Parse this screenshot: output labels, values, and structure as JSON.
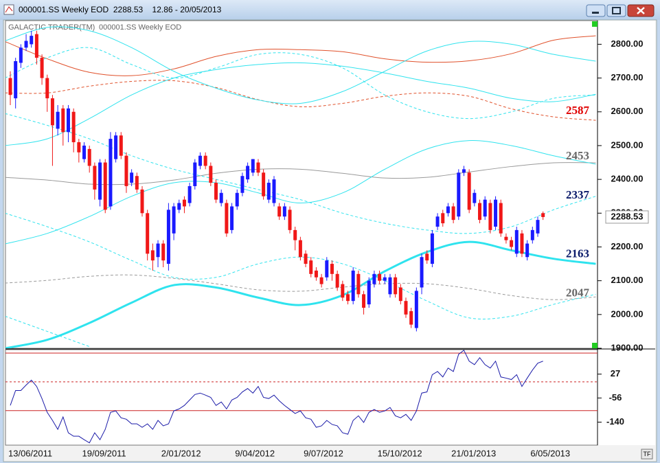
{
  "window": {
    "title": "000001.SS Weekly EOD  2288.53    12.86 - 20/05/2013"
  },
  "chart_data": {
    "type": "candlestick",
    "source": "GALACTIC TRADER(TM)",
    "title": "000001.SS Weekly EOD",
    "categories": [
      "13/06/2011",
      null,
      null,
      null,
      null,
      null,
      null,
      null,
      null,
      null,
      null,
      null,
      null,
      null,
      "19/09/2011",
      null,
      null,
      null,
      null,
      null,
      null,
      null,
      null,
      null,
      null,
      null,
      null,
      null,
      null,
      "2/01/2012",
      null,
      null,
      null,
      null,
      null,
      null,
      null,
      null,
      null,
      null,
      null,
      null,
      null,
      "9/04/2012",
      null,
      null,
      null,
      null,
      null,
      null,
      null,
      null,
      null,
      null,
      null,
      null,
      "9/07/2012",
      null,
      null,
      null,
      null,
      null,
      null,
      null,
      null,
      null,
      null,
      null,
      null,
      null,
      "15/10/2012",
      null,
      null,
      null,
      null,
      null,
      null,
      null,
      null,
      null,
      null,
      null,
      null,
      null,
      "21/01/2013",
      null,
      null,
      null,
      null,
      null,
      null,
      null,
      null,
      null,
      null,
      null,
      null,
      null,
      null,
      "6/05/2013",
      null,
      null,
      null,
      null,
      null,
      null,
      null,
      null,
      null,
      null,
      null,
      null
    ],
    "open": [
      2700,
      2640,
      2745,
      2790,
      2800,
      2830,
      2760,
      2700,
      2640,
      2550,
      2610,
      2540,
      2600,
      2510,
      2460,
      2490,
      2440,
      2340,
      2450,
      2320,
      2460,
      2530,
      2470,
      2390,
      2410,
      2370,
      2300,
      2190,
      2170,
      2210,
      2150,
      2240,
      2310,
      2340,
      2330,
      2380,
      2440,
      2470,
      2440,
      2390,
      2330,
      2330,
      2250,
      2320,
      2360,
      2400,
      2420,
      2450,
      2420,
      2340,
      2330,
      2320,
      2290,
      2310,
      2250,
      2220,
      2180,
      2160,
      2130,
      2110,
      2110,
      2150,
      2120,
      2090,
      2060,
      2040,
      2120,
      2060,
      2030,
      2090,
      2120,
      2100,
      2060,
      2110,
      2080,
      2040,
      2010,
      1960,
      2080,
      2180,
      2150,
      2260,
      2300,
      2300,
      2320,
      2290,
      2420,
      2420,
      2330,
      2330,
      2290,
      2330,
      2260,
      2330,
      2230,
      2220,
      2180,
      2240,
      2170,
      2220,
      2240,
      2300,
      null,
      null,
      null,
      null,
      null,
      null,
      null,
      null,
      null,
      null
    ],
    "high": [
      2720,
      2760,
      2800,
      2830,
      2840,
      2840,
      2770,
      2710,
      2650,
      2620,
      2620,
      2620,
      2610,
      2520,
      2510,
      2500,
      2450,
      2460,
      2460,
      2540,
      2540,
      2540,
      2480,
      2430,
      2420,
      2380,
      2310,
      2210,
      2220,
      2220,
      2330,
      2330,
      2340,
      2350,
      2390,
      2460,
      2480,
      2480,
      2450,
      2400,
      2370,
      2340,
      2330,
      2370,
      2420,
      2450,
      2460,
      2460,
      2430,
      2400,
      2410,
      2330,
      2330,
      2320,
      2260,
      2230,
      2190,
      2170,
      2140,
      2120,
      2170,
      2160,
      2130,
      2100,
      2070,
      2140,
      2130,
      2070,
      2110,
      2130,
      2130,
      2120,
      2120,
      2120,
      2090,
      2050,
      2020,
      2080,
      2180,
      2190,
      2250,
      2300,
      2310,
      2330,
      2330,
      2430,
      2440,
      2430,
      2370,
      2340,
      2350,
      2340,
      2350,
      2340,
      2240,
      2230,
      2260,
      2250,
      2220,
      2260,
      2290,
      2305,
      null,
      null,
      null,
      null,
      null,
      null,
      null,
      null,
      null,
      null
    ],
    "low": [
      2620,
      2610,
      2730,
      2780,
      2790,
      2740,
      2680,
      2600,
      2440,
      2530,
      2500,
      2510,
      2480,
      2450,
      2450,
      2420,
      2340,
      2320,
      2300,
      2310,
      2450,
      2460,
      2360,
      2380,
      2360,
      2290,
      2160,
      2130,
      2140,
      2140,
      2130,
      2220,
      2300,
      2300,
      2320,
      2370,
      2430,
      2430,
      2380,
      2330,
      2320,
      2230,
      2240,
      2310,
      2350,
      2390,
      2410,
      2410,
      2340,
      2330,
      2320,
      2280,
      2280,
      2240,
      2190,
      2160,
      2140,
      2110,
      2100,
      2080,
      2100,
      2100,
      2070,
      2040,
      2030,
      2030,
      2050,
      2000,
      2020,
      2080,
      2090,
      2090,
      2050,
      2050,
      2030,
      1990,
      1960,
      1950,
      2060,
      2150,
      2140,
      2250,
      2260,
      2290,
      2270,
      2280,
      2410,
      2300,
      2320,
      2270,
      2280,
      2240,
      2250,
      2230,
      2210,
      2190,
      2170,
      2170,
      2160,
      2210,
      2230,
      2280,
      null,
      null,
      null,
      null,
      null,
      null,
      null,
      null,
      null,
      null
    ],
    "close": [
      2650,
      2750,
      2790,
      2810,
      2825,
      2760,
      2700,
      2640,
      2560,
      2600,
      2540,
      2610,
      2510,
      2480,
      2500,
      2440,
      2370,
      2450,
      2310,
      2520,
      2530,
      2470,
      2380,
      2420,
      2370,
      2300,
      2180,
      2160,
      2210,
      2160,
      2310,
      2320,
      2330,
      2320,
      2380,
      2450,
      2470,
      2440,
      2390,
      2340,
      2360,
      2240,
      2320,
      2360,
      2410,
      2440,
      2460,
      2420,
      2350,
      2390,
      2400,
      2290,
      2320,
      2250,
      2220,
      2170,
      2150,
      2120,
      2110,
      2090,
      2160,
      2120,
      2080,
      2050,
      2040,
      2130,
      2060,
      2020,
      2100,
      2120,
      2100,
      2110,
      2110,
      2060,
      2040,
      2000,
      1970,
      2070,
      2170,
      2160,
      2240,
      2290,
      2270,
      2320,
      2280,
      2420,
      2430,
      2310,
      2360,
      2280,
      2340,
      2250,
      2340,
      2240,
      2220,
      2200,
      2250,
      2180,
      2210,
      2250,
      2280,
      2288.53,
      null,
      null,
      null,
      null,
      null,
      null,
      null,
      null,
      null,
      null
    ],
    "up_color": "#1a1aff",
    "down_color": "#f01818",
    "ylim": [
      1900,
      2870
    ],
    "yticks": [
      {
        "value": 1900,
        "label": "1900.00"
      },
      {
        "value": 2000,
        "label": "2000.00"
      },
      {
        "value": 2100,
        "label": "2100.00"
      },
      {
        "value": 2200,
        "label": "2200.00"
      },
      {
        "value": 2300,
        "label": "2300.00"
      },
      {
        "value": 2400,
        "label": "2400.00"
      },
      {
        "value": 2500,
        "label": "2500.00"
      },
      {
        "value": 2600,
        "label": "2600.00"
      },
      {
        "value": 2700,
        "label": "2700.00"
      },
      {
        "value": 2800,
        "label": "2800.00"
      }
    ],
    "overlay_x": [
      -1,
      7,
      15,
      23,
      31,
      39,
      47,
      55,
      63,
      71,
      79,
      87,
      95,
      103,
      111
    ],
    "overlays": [
      {
        "color": "#2fe3ee",
        "dash": false,
        "width": 3,
        "values": [
          1900,
          1925,
          1975,
          2035,
          2087,
          2080,
          2050,
          2028,
          2057,
          2128,
          2185,
          2215,
          2190,
          2165,
          2150
        ]
      },
      {
        "color": "#e0502a",
        "dash": false,
        "width": 1,
        "values": [
          2808,
          2757,
          2717,
          2707,
          2727,
          2764,
          2784,
          2784,
          2778,
          2757,
          2747,
          2751,
          2772,
          2812,
          2825
        ]
      },
      {
        "color": "#e0502a",
        "dash": true,
        "width": 1,
        "values": [
          2656,
          2656,
          2676,
          2690,
          2692,
          2672,
          2636,
          2615,
          2625,
          2646,
          2656,
          2646,
          2609,
          2585,
          2575
        ]
      },
      {
        "color": "#999999",
        "dash": false,
        "width": 1,
        "values": [
          2406,
          2398,
          2386,
          2386,
          2398,
          2418,
          2430,
          2430,
          2418,
          2404,
          2406,
          2422,
          2438,
          2449,
          2449
        ]
      },
      {
        "color": "#999999",
        "dash": true,
        "width": 1,
        "values": [
          2093,
          2101,
          2113,
          2117,
          2107,
          2091,
          2073,
          2069,
          2081,
          2091,
          2091,
          2077,
          2056,
          2044,
          2052
        ]
      },
      {
        "color": "#2fe3ee",
        "dash": false,
        "width": 1,
        "values": [
          2810,
          2850,
          2840,
          2790,
          2720,
          2670,
          2635,
          2625,
          2660,
          2720,
          2780,
          2808,
          2800,
          2770,
          2750
        ]
      },
      {
        "color": "#2fe3ee",
        "dash": false,
        "width": 1,
        "values": [
          2500,
          2520,
          2580,
          2650,
          2700,
          2725,
          2740,
          2745,
          2735,
          2715,
          2690,
          2670,
          2640,
          2630,
          2652
        ]
      },
      {
        "color": "#2fe3ee",
        "dash": false,
        "width": 1,
        "values": [
          2209,
          2240,
          2290,
          2350,
          2390,
          2390,
          2360,
          2330,
          2360,
          2430,
          2490,
          2515,
          2500,
          2470,
          2445
        ]
      },
      {
        "color": "#2fe3ee",
        "dash": true,
        "width": 1,
        "values": [
          2700,
          2760,
          2790,
          2740,
          2700,
          2730,
          2770,
          2770,
          2730,
          2650,
          2600,
          2580,
          2600,
          2640,
          2650
        ]
      },
      {
        "color": "#2fe3ee",
        "dash": true,
        "width": 1,
        "values": [
          2595,
          2560,
          2520,
          2470,
          2430,
          2400,
          2370,
          2340,
          2300,
          2270,
          2250,
          2240,
          2260,
          2310,
          2350
        ]
      },
      {
        "color": "#2fe3ee",
        "dash": true,
        "width": 1,
        "values": [
          2300,
          2260,
          2215,
          2160,
          2110,
          2110,
          2150,
          2170,
          2150,
          2100,
          2040,
          1990,
          1995,
          2030,
          2060
        ]
      },
      {
        "color": "#2fe3ee",
        "dash": true,
        "width": 1,
        "values": [
          1995,
          1950,
          1905,
          null,
          null,
          null,
          null,
          null,
          null,
          null,
          null,
          null,
          null,
          null,
          null
        ]
      }
    ],
    "levels": [
      {
        "value": 2587,
        "color": "#e00000"
      },
      {
        "value": 2453,
        "color": "#666666"
      },
      {
        "value": 2337,
        "color": "#0a1a6a"
      },
      {
        "value": 2163,
        "color": "#0a1a6a"
      },
      {
        "value": 2047,
        "color": "#666666"
      }
    ],
    "oscillator": {
      "color": "#1a1aa8",
      "ylim": [
        -220,
        112
      ],
      "yticks": [
        27,
        -56,
        -140
      ],
      "levels": [
        100,
        0,
        -100
      ],
      "level_color": "#cc2222",
      "values": [
        -82,
        -30,
        -30,
        -11,
        6,
        -16,
        -58,
        -106,
        -134,
        -165,
        -122,
        -177,
        -189,
        -189,
        -201,
        -212,
        -177,
        -201,
        -165,
        -106,
        -101,
        -125,
        -130,
        -146,
        -146,
        -158,
        -146,
        -165,
        -134,
        -153,
        -146,
        -101,
        -94,
        -82,
        -63,
        -44,
        -39,
        -46,
        -54,
        -82,
        -70,
        -94,
        -63,
        -54,
        -35,
        -23,
        -39,
        -16,
        -54,
        -58,
        -46,
        -66,
        -82,
        -96,
        -110,
        -101,
        -125,
        -130,
        -158,
        -153,
        -134,
        -148,
        -153,
        -177,
        -182,
        -134,
        -118,
        -141,
        -106,
        -96,
        -106,
        -101,
        -89,
        -118,
        -125,
        -113,
        -134,
        -101,
        -39,
        -35,
        25,
        36,
        17,
        48,
        36,
        96,
        110,
        72,
        60,
        84,
        60,
        48,
        72,
        17,
        13,
        8,
        25,
        -16,
        13,
        41,
        65,
        72,
        null,
        null,
        null,
        null,
        null,
        null,
        null,
        null,
        null,
        null
      ]
    }
  }
}
